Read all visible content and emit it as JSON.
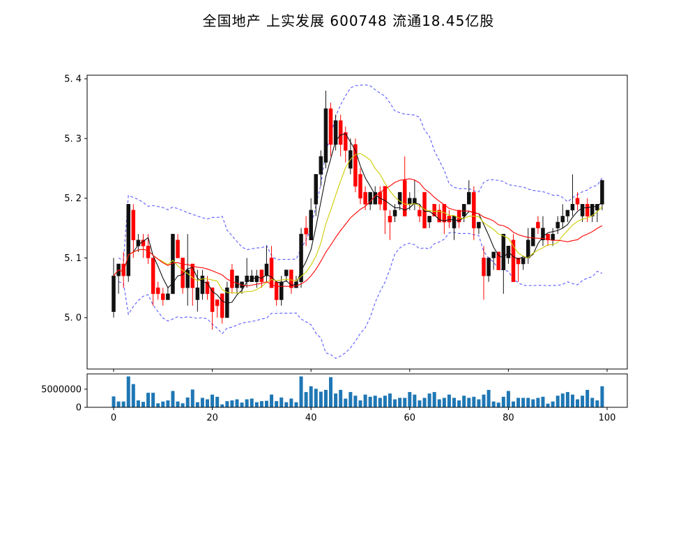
{
  "title": "全国地产 上实发展 600748 流通18.45亿股",
  "colors": {
    "background": "#ffffff",
    "up_candle": "#111111",
    "down_candle": "#ff0000",
    "ma_short": "#111111",
    "ma_mid": "#cccc00",
    "ma_long": "#ff0000",
    "bollinger_band": "#6666ff",
    "volume_bar": "#1f77b4",
    "axis": "#000000"
  },
  "chart_data": {
    "type": "candlestick",
    "title": "全国地产 上实发展 600748 流通18.45亿股",
    "legend": "none",
    "grid": "off",
    "overlays": [
      {
        "name": "MA5",
        "style": "solid",
        "color": "#111111",
        "window": 5
      },
      {
        "name": "MA10",
        "style": "solid",
        "color": "#cccc00",
        "window": 10
      },
      {
        "name": "MA20",
        "style": "solid",
        "color": "#ff0000",
        "window": 20
      },
      {
        "name": "Bollinger(20,2)",
        "style": "dashed",
        "color": "#6666ff",
        "window": 20,
        "k": 2
      }
    ],
    "price_axis": {
      "range": [
        4.914,
        5.406
      ],
      "ticks": [
        {
          "value": 5.0,
          "label": "5. 0"
        },
        {
          "value": 5.1,
          "label": "5. 1"
        },
        {
          "value": 5.2,
          "label": "5. 2"
        },
        {
          "value": 5.3,
          "label": "5. 3"
        },
        {
          "value": 5.4,
          "label": "5. 4"
        }
      ]
    },
    "x_axis": {
      "range": [
        -5.4,
        104.5
      ],
      "ticks": [
        {
          "value": 0,
          "label": "0"
        },
        {
          "value": 20,
          "label": "20"
        },
        {
          "value": 40,
          "label": "40"
        },
        {
          "value": 60,
          "label": "60"
        },
        {
          "value": 80,
          "label": "80"
        },
        {
          "value": 100,
          "label": "100"
        }
      ]
    },
    "volume_axis": {
      "range": [
        0,
        9200000
      ],
      "ticks": [
        {
          "value": 5000000,
          "label": "5000000"
        },
        {
          "value": 0,
          "label": "0"
        }
      ]
    },
    "open": [
      5.01,
      5.07,
      5.09,
      5.07,
      5.18,
      5.12,
      5.13,
      5.12,
      5.1,
      5.05,
      5.04,
      5.03,
      5.04,
      5.13,
      5.1,
      5.05,
      5.09,
      5.03,
      5.04,
      5.06,
      5.05,
      5.03,
      5.04,
      5.0,
      5.08,
      5.05,
      5.05,
      5.06,
      5.06,
      5.06,
      5.08,
      5.07,
      5.1,
      5.06,
      5.03,
      5.07,
      5.08,
      5.05,
      5.06,
      5.15,
      5.13,
      5.19,
      5.24,
      5.26,
      5.35,
      5.29,
      5.33,
      5.31,
      5.25,
      5.29,
      5.24,
      5.21,
      5.19,
      5.19,
      5.21,
      5.22,
      5.17,
      5.17,
      5.19,
      5.23,
      5.19,
      5.19,
      5.18,
      5.21,
      5.16,
      5.19,
      5.18,
      5.19,
      5.17,
      5.15,
      5.18,
      5.17,
      5.19,
      5.21,
      5.15,
      5.1,
      5.07,
      5.1,
      5.11,
      5.08,
      5.1,
      5.13,
      5.1,
      5.09,
      5.1,
      5.12,
      5.16,
      5.13,
      5.14,
      5.13,
      5.15,
      5.16,
      5.17,
      5.18,
      5.2,
      5.17,
      5.19,
      5.17,
      5.18,
      5.19
    ],
    "high": [
      5.1,
      5.09,
      5.11,
      5.19,
      5.19,
      5.14,
      5.14,
      5.14,
      5.1,
      5.06,
      5.05,
      5.05,
      5.14,
      5.14,
      5.1,
      5.14,
      5.09,
      5.08,
      5.08,
      5.07,
      5.05,
      5.03,
      5.04,
      5.06,
      5.09,
      5.07,
      5.06,
      5.1,
      5.08,
      5.08,
      5.08,
      5.12,
      5.12,
      5.06,
      5.07,
      5.08,
      5.08,
      5.07,
      5.15,
      5.17,
      5.2,
      5.24,
      5.28,
      5.38,
      5.36,
      5.34,
      5.34,
      5.32,
      5.3,
      5.3,
      5.25,
      5.22,
      5.21,
      5.22,
      5.22,
      5.22,
      5.18,
      5.19,
      5.21,
      5.27,
      5.21,
      5.23,
      5.19,
      5.21,
      5.17,
      5.19,
      5.19,
      5.19,
      5.18,
      5.17,
      5.18,
      5.19,
      5.23,
      5.22,
      5.16,
      5.12,
      5.1,
      5.11,
      5.11,
      5.14,
      5.12,
      5.14,
      5.1,
      5.1,
      5.15,
      5.15,
      5.17,
      5.17,
      5.14,
      5.15,
      5.17,
      5.19,
      5.18,
      5.24,
      5.21,
      5.19,
      5.2,
      5.19,
      5.19,
      5.23
    ],
    "low": [
      5.0,
      5.04,
      5.05,
      5.06,
      5.1,
      5.11,
      5.1,
      5.09,
      5.02,
      5.03,
      5.02,
      5.03,
      5.04,
      5.1,
      5.04,
      5.02,
      5.02,
      5.01,
      5.03,
      5.03,
      4.98,
      5.0,
      4.99,
      5.0,
      5.04,
      5.04,
      5.04,
      5.05,
      5.06,
      5.05,
      5.05,
      5.06,
      5.05,
      5.02,
      5.02,
      5.06,
      5.04,
      5.05,
      5.05,
      5.12,
      5.13,
      5.17,
      5.22,
      5.25,
      5.27,
      5.28,
      5.27,
      5.26,
      5.24,
      5.21,
      5.19,
      5.18,
      5.18,
      5.19,
      5.18,
      5.14,
      5.13,
      5.16,
      5.18,
      5.17,
      5.18,
      5.18,
      5.16,
      5.15,
      5.15,
      5.17,
      5.16,
      5.14,
      5.15,
      5.13,
      5.15,
      5.16,
      5.19,
      5.13,
      5.14,
      5.03,
      5.06,
      5.08,
      5.08,
      5.04,
      5.09,
      5.06,
      5.06,
      5.08,
      5.09,
      5.12,
      5.14,
      5.12,
      5.12,
      5.12,
      5.14,
      5.15,
      5.16,
      5.17,
      5.18,
      5.16,
      5.16,
      5.16,
      5.16,
      5.18
    ],
    "close": [
      5.07,
      5.09,
      5.07,
      5.19,
      5.13,
      5.13,
      5.12,
      5.1,
      5.04,
      5.04,
      5.03,
      5.04,
      5.14,
      5.1,
      5.05,
      5.08,
      5.05,
      5.05,
      5.07,
      5.04,
      5.01,
      5.02,
      5.0,
      5.05,
      5.05,
      5.07,
      5.06,
      5.07,
      5.07,
      5.07,
      5.06,
      5.09,
      5.05,
      5.03,
      5.06,
      5.08,
      5.05,
      5.06,
      5.14,
      5.14,
      5.18,
      5.24,
      5.27,
      5.35,
      5.29,
      5.33,
      5.29,
      5.28,
      5.28,
      5.22,
      5.2,
      5.19,
      5.21,
      5.21,
      5.19,
      5.18,
      5.16,
      5.18,
      5.21,
      5.17,
      5.2,
      5.2,
      5.17,
      5.15,
      5.17,
      5.17,
      5.16,
      5.16,
      5.16,
      5.17,
      5.16,
      5.19,
      5.21,
      5.15,
      5.16,
      5.07,
      5.1,
      5.11,
      5.08,
      5.14,
      5.12,
      5.06,
      5.09,
      5.1,
      5.13,
      5.15,
      5.15,
      5.15,
      5.13,
      5.14,
      5.16,
      5.17,
      5.18,
      5.19,
      5.19,
      5.19,
      5.17,
      5.19,
      5.19,
      5.23
    ],
    "volume": [
      3000000,
      1600000,
      1600000,
      8500000,
      6400000,
      1900000,
      1500000,
      4000000,
      4000000,
      1100000,
      1600000,
      1900000,
      4500000,
      1600000,
      1100000,
      2700000,
      4900000,
      1400000,
      2600000,
      2200000,
      3500000,
      2900000,
      800000,
      1700000,
      1900000,
      2200000,
      1300000,
      2200000,
      2400000,
      1400000,
      1700000,
      1800000,
      3500000,
      1700000,
      2700000,
      1400000,
      2400000,
      1400000,
      8500000,
      4200000,
      5800000,
      5100000,
      4300000,
      4800000,
      8300000,
      3800000,
      4800000,
      2400000,
      4200000,
      3200000,
      1900000,
      3500000,
      2900000,
      3200000,
      2600000,
      3200000,
      3800000,
      2200000,
      2600000,
      2600000,
      4200000,
      3500000,
      1900000,
      2600000,
      3800000,
      4200000,
      2200000,
      2600000,
      3500000,
      2600000,
      1900000,
      3200000,
      2600000,
      2900000,
      2200000,
      3500000,
      4800000,
      1600000,
      1300000,
      2900000,
      4500000,
      1600000,
      2600000,
      2600000,
      2600000,
      2200000,
      2600000,
      2900000,
      1000000,
      1600000,
      3200000,
      3800000,
      4200000,
      3500000,
      2200000,
      3200000,
      4800000,
      2600000,
      1900000,
      5800000
    ]
  }
}
